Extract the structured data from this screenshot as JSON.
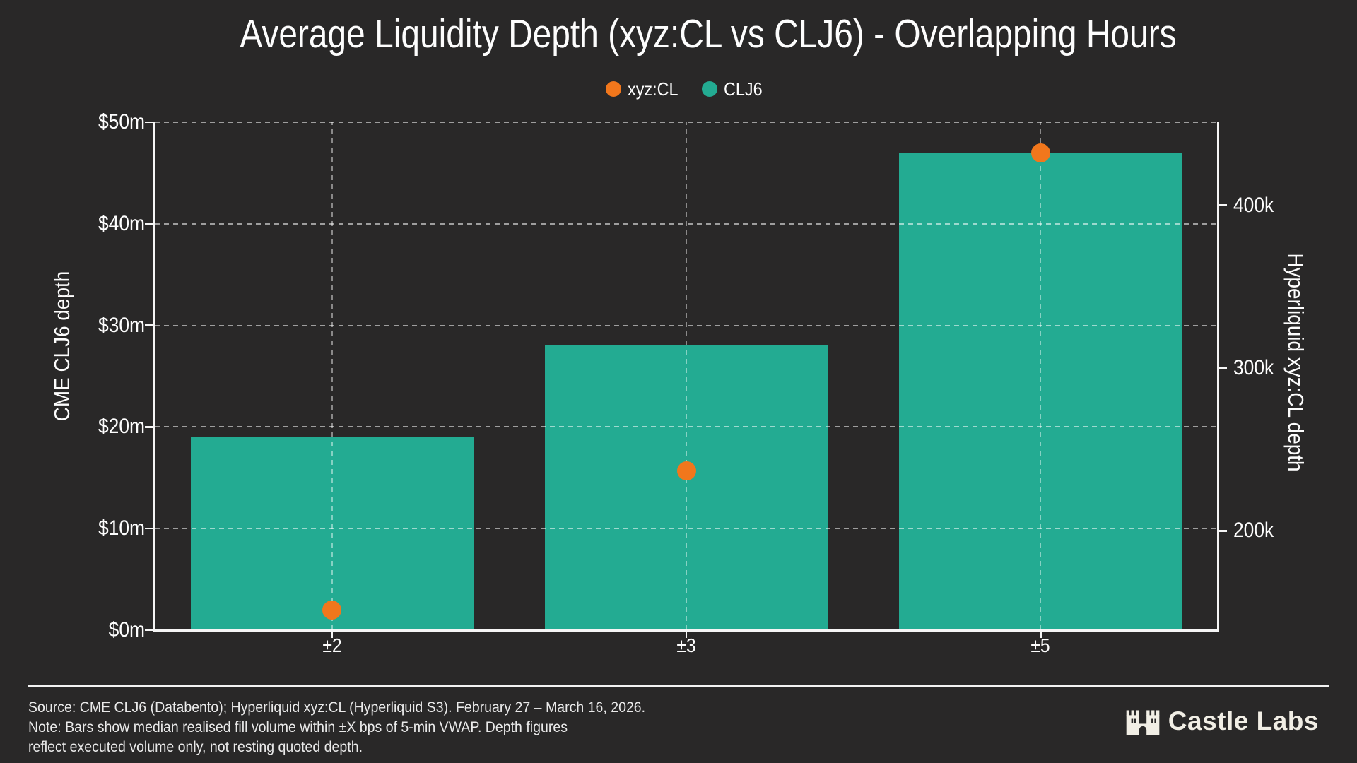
{
  "chart_data": {
    "type": "bar",
    "title": "Average Liquidity Depth (xyz:CL vs CLJ6) - Overlapping Hours",
    "categories": [
      "±2",
      "±3",
      "±5"
    ],
    "xlabel": "",
    "grid": true,
    "legend_position": "top center",
    "series": [
      {
        "name": "CLJ6",
        "chart_type": "bar",
        "y_axis": "left",
        "color": "#23ab92",
        "values": [
          19000000,
          28000000,
          47000000
        ],
        "values_display": [
          "$19m",
          "$28m",
          "$47m"
        ]
      },
      {
        "name": "xyz:CL",
        "chart_type": "scatter",
        "y_axis": "right",
        "color": "#f1771c",
        "values": [
          151500,
          237000,
          432000
        ],
        "values_display": [
          "~150k",
          "~237k",
          "~432k"
        ]
      }
    ],
    "left_axis": {
      "label": "CME CLJ6 depth",
      "range": [
        0,
        50000000
      ],
      "ticks": [
        {
          "value": 0,
          "label": "$0m"
        },
        {
          "value": 10000000,
          "label": "$10m"
        },
        {
          "value": 20000000,
          "label": "$20m"
        },
        {
          "value": 30000000,
          "label": "$30m"
        },
        {
          "value": 40000000,
          "label": "$40m"
        },
        {
          "value": 50000000,
          "label": "$50m"
        }
      ]
    },
    "right_axis": {
      "label": "Hyperliquid xyz:CL depth",
      "range": [
        139000,
        451000
      ],
      "ticks": [
        {
          "value": 200000,
          "label": "200k"
        },
        {
          "value": 300000,
          "label": "300k"
        },
        {
          "value": 400000,
          "label": "400k"
        }
      ]
    }
  },
  "legend": {
    "items": [
      {
        "label": "xyz:CL",
        "color": "#f1771c"
      },
      {
        "label": "CLJ6",
        "color": "#23ab92"
      }
    ]
  },
  "footer": {
    "source_line": "Source: CME CLJ6 (Databento); Hyperliquid xyz:CL (Hyperliquid S3). February 27 – March 16, 2026.",
    "note_line1": "Note: Bars show median realised fill volume within ±X bps of 5-min VWAP. Depth figures",
    "note_line2": "reflect executed volume only, not resting quoted depth."
  },
  "branding": {
    "logo_text": "Castle Labs",
    "logo_icon": "castle-icon"
  },
  "colors": {
    "background": "#292828",
    "bar_teal": "#23ab92",
    "dot_orange": "#f1771c",
    "text": "#fdfdfd"
  }
}
